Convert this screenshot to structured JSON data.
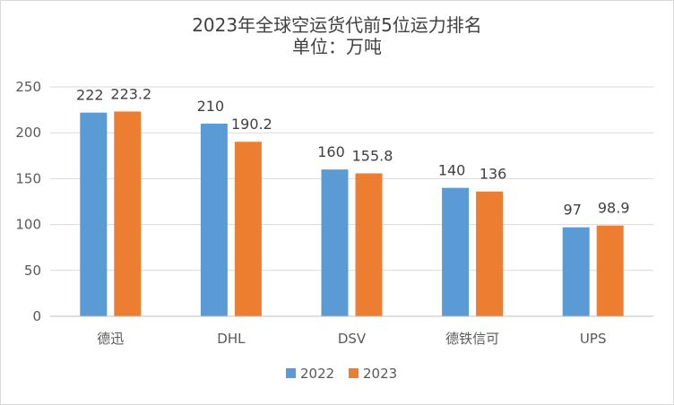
{
  "chart_data": {
    "type": "bar",
    "title": "2023年全球空运货代前5位运力排名",
    "subtitle": "单位：万吨",
    "categories": [
      "德迅",
      "DHL",
      "DSV",
      "德铁信可",
      "UPS"
    ],
    "series": [
      {
        "name": "2022",
        "values": [
          222,
          210,
          160,
          140,
          97
        ],
        "color": "#5b9bd5"
      },
      {
        "name": "2023",
        "values": [
          223.2,
          190.2,
          155.8,
          136,
          98.9
        ],
        "color": "#ed7d31"
      }
    ],
    "y_ticks": [
      "0",
      "50",
      "100",
      "150",
      "200",
      "250"
    ],
    "ylim": [
      0,
      250
    ],
    "grid": true,
    "legend_position": "bottom"
  }
}
